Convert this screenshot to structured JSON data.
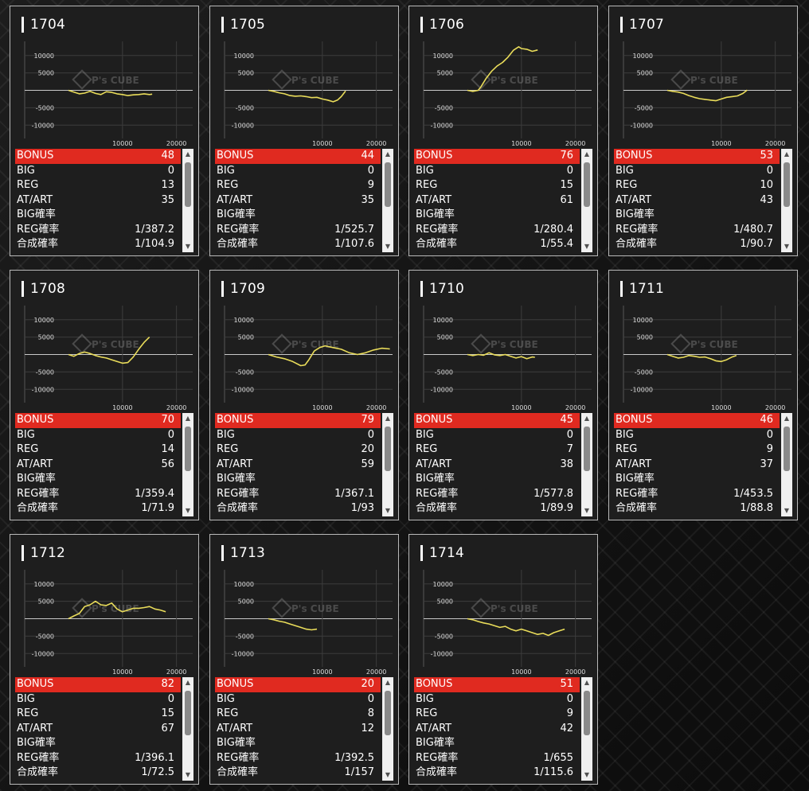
{
  "colors": {
    "bonus_bg": "#e02a20",
    "line": "#e9dc5a",
    "card_bg": "#1e1e1e"
  },
  "watermark": "P's CUBE",
  "cards": [
    {
      "id": "1704",
      "stats": [
        [
          "BONUS",
          "48"
        ],
        [
          "BIG",
          "0"
        ],
        [
          "REG",
          "13"
        ],
        [
          "AT/ART",
          "35"
        ],
        [
          "BIG確率",
          ""
        ],
        [
          "REG確率",
          "1/387.2"
        ],
        [
          "合成確率",
          "1/104.9"
        ]
      ],
      "chart_data": {
        "type": "line",
        "xticks": [
          "10000",
          "20000"
        ],
        "yticks": [
          "10000",
          "5000",
          "-5000",
          "-10000"
        ],
        "xlim": [
          0,
          23000
        ],
        "ylim": [
          -12000,
          12000
        ],
        "x": [
          0,
          1000,
          2000,
          3000,
          4000,
          5000,
          6000,
          7000,
          8000,
          9000,
          10000,
          11000,
          12000,
          13000,
          14000,
          15000,
          15500
        ],
        "y": [
          0,
          -500,
          -1000,
          -800,
          -300,
          -900,
          -1200,
          -400,
          -600,
          -1000,
          -1200,
          -1500,
          -1300,
          -1200,
          -1000,
          -1200,
          -1100
        ]
      }
    },
    {
      "id": "1705",
      "stats": [
        [
          "BONUS",
          "44"
        ],
        [
          "BIG",
          "0"
        ],
        [
          "REG",
          "9"
        ],
        [
          "AT/ART",
          "35"
        ],
        [
          "BIG確率",
          ""
        ],
        [
          "REG確率",
          "1/525.7"
        ],
        [
          "合成確率",
          "1/107.6"
        ]
      ],
      "chart_data": {
        "type": "line",
        "xticks": [
          "10000",
          "20000"
        ],
        "yticks": [
          "10000",
          "5000",
          "-5000",
          "-10000"
        ],
        "xlim": [
          0,
          23000
        ],
        "ylim": [
          -12000,
          12000
        ],
        "x": [
          0,
          1000,
          2000,
          3000,
          4000,
          5000,
          6000,
          7000,
          8000,
          9000,
          10000,
          11000,
          12000,
          12800,
          13500,
          14300
        ],
        "y": [
          0,
          -300,
          -700,
          -1000,
          -1500,
          -1700,
          -1600,
          -1800,
          -2100,
          -2000,
          -2500,
          -2800,
          -3300,
          -2800,
          -1800,
          -200
        ]
      }
    },
    {
      "id": "1706",
      "stats": [
        [
          "BONUS",
          "76"
        ],
        [
          "BIG",
          "0"
        ],
        [
          "REG",
          "15"
        ],
        [
          "AT/ART",
          "61"
        ],
        [
          "BIG確率",
          ""
        ],
        [
          "REG確率",
          "1/280.4"
        ],
        [
          "合成確率",
          "1/55.4"
        ]
      ],
      "chart_data": {
        "type": "line",
        "xticks": [
          "10000",
          "20000"
        ],
        "yticks": [
          "10000",
          "5000",
          "-5000",
          "-10000"
        ],
        "xlim": [
          0,
          23000
        ],
        "ylim": [
          -12000,
          12000
        ],
        "x": [
          0,
          1000,
          2000,
          2500,
          3500,
          4500,
          5500,
          6500,
          7500,
          8500,
          9500,
          10000,
          11000,
          12000,
          13000
        ],
        "y": [
          0,
          -300,
          0,
          1000,
          3500,
          5500,
          7000,
          8000,
          9500,
          11500,
          12500,
          12000,
          11800,
          11200,
          11600
        ]
      }
    },
    {
      "id": "1707",
      "stats": [
        [
          "BONUS",
          "53"
        ],
        [
          "BIG",
          "0"
        ],
        [
          "REG",
          "10"
        ],
        [
          "AT/ART",
          "43"
        ],
        [
          "BIG確率",
          ""
        ],
        [
          "REG確率",
          "1/480.7"
        ],
        [
          "合成確率",
          "1/90.7"
        ]
      ],
      "chart_data": {
        "type": "line",
        "xticks": [
          "10000",
          "20000"
        ],
        "yticks": [
          "10000",
          "5000",
          "-5000",
          "-10000"
        ],
        "xlim": [
          0,
          23000
        ],
        "ylim": [
          -12000,
          12000
        ],
        "x": [
          0,
          1000,
          2000,
          3000,
          4000,
          5000,
          6000,
          7000,
          8000,
          9000,
          10000,
          11000,
          12000,
          13000,
          14000,
          14800
        ],
        "y": [
          0,
          -300,
          -500,
          -900,
          -1500,
          -2000,
          -2400,
          -2600,
          -2800,
          -3000,
          -2500,
          -2000,
          -1800,
          -1600,
          -900,
          100
        ]
      }
    },
    {
      "id": "1708",
      "stats": [
        [
          "BONUS",
          "70"
        ],
        [
          "BIG",
          "0"
        ],
        [
          "REG",
          "14"
        ],
        [
          "AT/ART",
          "56"
        ],
        [
          "BIG確率",
          ""
        ],
        [
          "REG確率",
          "1/359.4"
        ],
        [
          "合成確率",
          "1/71.9"
        ]
      ],
      "chart_data": {
        "type": "line",
        "xticks": [
          "10000",
          "20000"
        ],
        "yticks": [
          "10000",
          "5000",
          "-5000",
          "-10000"
        ],
        "xlim": [
          0,
          23000
        ],
        "ylim": [
          -12000,
          12000
        ],
        "x": [
          0,
          1000,
          2000,
          3000,
          4000,
          5000,
          6000,
          7000,
          8000,
          9000,
          10000,
          11000,
          12000,
          13000,
          14000,
          15000
        ],
        "y": [
          0,
          -500,
          300,
          700,
          300,
          -300,
          -700,
          -1000,
          -1500,
          -2000,
          -2500,
          -2300,
          -700,
          1500,
          3500,
          5000
        ]
      }
    },
    {
      "id": "1709",
      "stats": [
        [
          "BONUS",
          "79"
        ],
        [
          "BIG",
          "0"
        ],
        [
          "REG",
          "20"
        ],
        [
          "AT/ART",
          "59"
        ],
        [
          "BIG確率",
          ""
        ],
        [
          "REG確率",
          "1/367.1"
        ],
        [
          "合成確率",
          "1/93"
        ]
      ],
      "chart_data": {
        "type": "line",
        "xticks": [
          "10000",
          "20000"
        ],
        "yticks": [
          "10000",
          "5000",
          "-5000",
          "-10000"
        ],
        "xlim": [
          0,
          23000
        ],
        "ylim": [
          -12000,
          12000
        ],
        "x": [
          0,
          1500,
          3000,
          4500,
          6000,
          6800,
          7500,
          8500,
          9500,
          10500,
          12000,
          13500,
          15000,
          16500,
          18000,
          19500,
          21000,
          22500
        ],
        "y": [
          0,
          -700,
          -1200,
          -2000,
          -3200,
          -3000,
          -1500,
          1000,
          2000,
          2500,
          2000,
          1500,
          500,
          0,
          500,
          1300,
          1800,
          1600
        ]
      }
    },
    {
      "id": "1710",
      "stats": [
        [
          "BONUS",
          "45"
        ],
        [
          "BIG",
          "0"
        ],
        [
          "REG",
          "7"
        ],
        [
          "AT/ART",
          "38"
        ],
        [
          "BIG確率",
          ""
        ],
        [
          "REG確率",
          "1/577.8"
        ],
        [
          "合成確率",
          "1/89.9"
        ]
      ],
      "chart_data": {
        "type": "line",
        "xticks": [
          "10000",
          "20000"
        ],
        "yticks": [
          "10000",
          "5000",
          "-5000",
          "-10000"
        ],
        "xlim": [
          0,
          23000
        ],
        "ylim": [
          -12000,
          12000
        ],
        "x": [
          0,
          1000,
          2000,
          3000,
          4000,
          5000,
          6000,
          7000,
          8000,
          9000,
          10000,
          11000,
          12000,
          12500
        ],
        "y": [
          0,
          -300,
          0,
          -200,
          500,
          -100,
          -300,
          0,
          -500,
          -1000,
          -600,
          -1200,
          -700,
          -800
        ]
      }
    },
    {
      "id": "1711",
      "stats": [
        [
          "BONUS",
          "46"
        ],
        [
          "BIG",
          "0"
        ],
        [
          "REG",
          "9"
        ],
        [
          "AT/ART",
          "37"
        ],
        [
          "BIG確率",
          ""
        ],
        [
          "REG確率",
          "1/453.5"
        ],
        [
          "合成確率",
          "1/88.8"
        ]
      ],
      "chart_data": {
        "type": "line",
        "xticks": [
          "10000",
          "20000"
        ],
        "yticks": [
          "10000",
          "5000",
          "-5000",
          "-10000"
        ],
        "xlim": [
          0,
          23000
        ],
        "ylim": [
          -12000,
          12000
        ],
        "x": [
          0,
          1000,
          2000,
          3000,
          4000,
          5000,
          6000,
          7000,
          8000,
          9000,
          10000,
          11000,
          12000,
          12800
        ],
        "y": [
          0,
          -500,
          -1000,
          -800,
          -300,
          -500,
          -800,
          -700,
          -1200,
          -1800,
          -2000,
          -1500,
          -700,
          -300
        ]
      }
    },
    {
      "id": "1712",
      "stats": [
        [
          "BONUS",
          "82"
        ],
        [
          "BIG",
          "0"
        ],
        [
          "REG",
          "15"
        ],
        [
          "AT/ART",
          "67"
        ],
        [
          "BIG確率",
          ""
        ],
        [
          "REG確率",
          "1/396.1"
        ],
        [
          "合成確率",
          "1/72.5"
        ]
      ],
      "chart_data": {
        "type": "line",
        "xticks": [
          "10000",
          "20000"
        ],
        "yticks": [
          "10000",
          "5000",
          "-5000",
          "-10000"
        ],
        "xlim": [
          0,
          23000
        ],
        "ylim": [
          -12000,
          12000
        ],
        "x": [
          0,
          1000,
          2000,
          3000,
          4000,
          5000,
          6000,
          7000,
          8000,
          9000,
          10000,
          11000,
          12000,
          13000,
          14000,
          15000,
          16000,
          17000,
          18000
        ],
        "y": [
          0,
          800,
          1500,
          3500,
          4000,
          5000,
          4000,
          3800,
          4500,
          2800,
          2000,
          2500,
          3000,
          3000,
          3200,
          3500,
          2800,
          2500,
          2000
        ]
      }
    },
    {
      "id": "1713",
      "stats": [
        [
          "BONUS",
          "20"
        ],
        [
          "BIG",
          "0"
        ],
        [
          "REG",
          "8"
        ],
        [
          "AT/ART",
          "12"
        ],
        [
          "BIG確率",
          ""
        ],
        [
          "REG確率",
          "1/392.5"
        ],
        [
          "合成確率",
          "1/157"
        ]
      ],
      "chart_data": {
        "type": "line",
        "xticks": [
          "10000",
          "20000"
        ],
        "yticks": [
          "10000",
          "5000",
          "-5000",
          "-10000"
        ],
        "xlim": [
          0,
          23000
        ],
        "ylim": [
          -12000,
          12000
        ],
        "x": [
          0,
          1000,
          2000,
          3000,
          4000,
          5000,
          6000,
          7000,
          8000,
          9000
        ],
        "y": [
          0,
          -300,
          -700,
          -1000,
          -1500,
          -2000,
          -2500,
          -3000,
          -3200,
          -3000
        ]
      }
    },
    {
      "id": "1714",
      "stats": [
        [
          "BONUS",
          "51"
        ],
        [
          "BIG",
          "0"
        ],
        [
          "REG",
          "9"
        ],
        [
          "AT/ART",
          "42"
        ],
        [
          "BIG確率",
          ""
        ],
        [
          "REG確率",
          "1/655"
        ],
        [
          "合成確率",
          "1/115.6"
        ]
      ],
      "chart_data": {
        "type": "line",
        "xticks": [
          "10000",
          "20000"
        ],
        "yticks": [
          "10000",
          "5000",
          "-5000",
          "-10000"
        ],
        "xlim": [
          0,
          23000
        ],
        "ylim": [
          -12000,
          12000
        ],
        "x": [
          0,
          1000,
          2000,
          3000,
          4000,
          5000,
          6000,
          7000,
          8000,
          9000,
          10000,
          11000,
          12000,
          13000,
          14000,
          15000,
          16000,
          17000,
          18000
        ],
        "y": [
          0,
          -300,
          -800,
          -1200,
          -1500,
          -2000,
          -2500,
          -2200,
          -3000,
          -3500,
          -3000,
          -3500,
          -4000,
          -4500,
          -4200,
          -4800,
          -4000,
          -3500,
          -3000
        ]
      }
    }
  ]
}
